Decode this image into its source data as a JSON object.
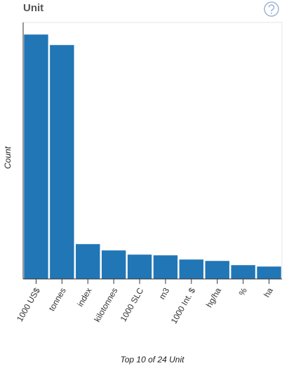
{
  "chart_data": {
    "type": "bar",
    "title": "Unit",
    "categories": [
      "1000 US$",
      "tonnes",
      "index",
      "kilotonnes",
      "1000 SLC",
      "m3",
      "1000 Int. $",
      "hg/ha",
      "%",
      "ha"
    ],
    "values": [
      349,
      334,
      50,
      41,
      35,
      34,
      28,
      26,
      20,
      18
    ],
    "color": "#2176b5",
    "ylim": [
      0,
      366
    ],
    "ylabel": "Count",
    "xlabel": "Top 10 of 24 Unit"
  }
}
